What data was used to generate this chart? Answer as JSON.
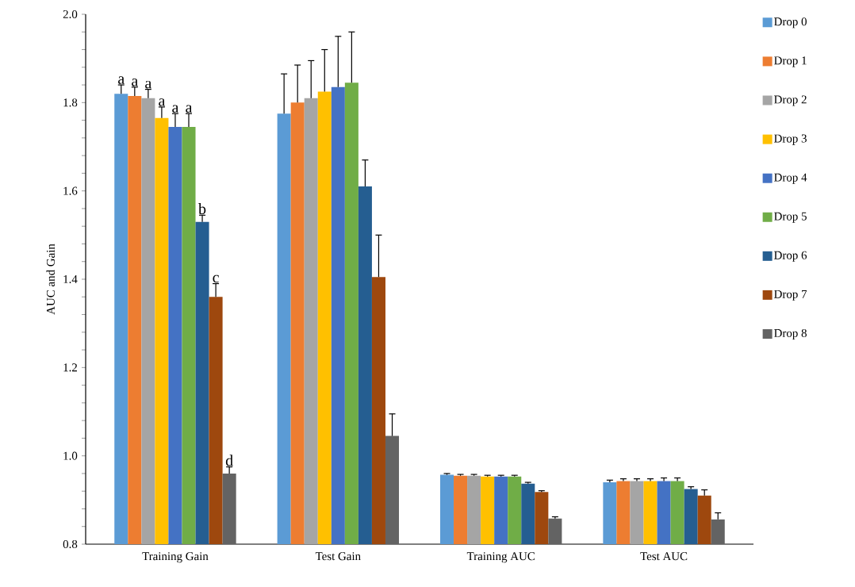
{
  "chart_data": {
    "type": "bar",
    "ylabel": "AUC and Gain",
    "categories": [
      "Training Gain",
      "Test Gain",
      "Training AUC",
      "Test AUC"
    ],
    "series": [
      {
        "name": "Drop 0",
        "color": "#5b9bd5",
        "values": [
          1.82,
          1.775,
          0.957,
          0.94
        ],
        "errors": [
          0.02,
          0.09,
          0.003,
          0.005
        ],
        "value_labels": [
          "a",
          null,
          null,
          null
        ]
      },
      {
        "name": "Drop 1",
        "color": "#ed7d31",
        "values": [
          1.815,
          1.8,
          0.955,
          0.943
        ],
        "errors": [
          0.02,
          0.085,
          0.003,
          0.005
        ],
        "value_labels": [
          "a",
          null,
          null,
          null
        ]
      },
      {
        "name": "Drop 2",
        "color": "#a5a5a5",
        "values": [
          1.81,
          1.81,
          0.955,
          0.943
        ],
        "errors": [
          0.02,
          0.085,
          0.003,
          0.005
        ],
        "value_labels": [
          "a",
          null,
          null,
          null
        ]
      },
      {
        "name": "Drop 3",
        "color": "#ffc000",
        "values": [
          1.765,
          1.825,
          0.953,
          0.943
        ],
        "errors": [
          0.025,
          0.095,
          0.003,
          0.005
        ],
        "value_labels": [
          "a",
          null,
          null,
          null
        ]
      },
      {
        "name": "Drop 4",
        "color": "#4472c4",
        "values": [
          1.745,
          1.835,
          0.953,
          0.943
        ],
        "errors": [
          0.03,
          0.115,
          0.003,
          0.007
        ],
        "value_labels": [
          "a",
          null,
          null,
          null
        ]
      },
      {
        "name": "Drop 5",
        "color": "#70ad47",
        "values": [
          1.745,
          1.845,
          0.953,
          0.943
        ],
        "errors": [
          0.03,
          0.115,
          0.003,
          0.007
        ],
        "value_labels": [
          "a",
          null,
          null,
          null
        ]
      },
      {
        "name": "Drop 6",
        "color": "#255e91",
        "values": [
          1.53,
          1.61,
          0.937,
          0.925
        ],
        "errors": [
          0.015,
          0.06,
          0.003,
          0.005
        ],
        "value_labels": [
          "b",
          null,
          null,
          null
        ]
      },
      {
        "name": "Drop 7",
        "color": "#9e480e",
        "values": [
          1.36,
          1.405,
          0.918,
          0.91
        ],
        "errors": [
          0.03,
          0.095,
          0.003,
          0.013
        ],
        "value_labels": [
          "c",
          null,
          null,
          null
        ]
      },
      {
        "name": "Drop 8",
        "color": "#636363",
        "values": [
          0.96,
          1.045,
          0.858,
          0.856
        ],
        "errors": [
          0.015,
          0.05,
          0.004,
          0.015
        ],
        "value_labels": [
          "d",
          null,
          null,
          null
        ]
      }
    ],
    "ylim": [
      0.8,
      2.0
    ],
    "yticks": [
      {
        "value": 0.8,
        "label": "0.8"
      },
      {
        "value": 0.84,
        "label": null
      },
      {
        "value": 0.88,
        "label": null
      },
      {
        "value": 0.92,
        "label": null
      },
      {
        "value": 0.96,
        "label": null
      },
      {
        "value": 1.0,
        "label": "1.0"
      },
      {
        "value": 1.04,
        "label": null
      },
      {
        "value": 1.08,
        "label": null
      },
      {
        "value": 1.12,
        "label": null
      },
      {
        "value": 1.16,
        "label": null
      },
      {
        "value": 1.2,
        "label": "1.2"
      },
      {
        "value": 1.24,
        "label": null
      },
      {
        "value": 1.28,
        "label": null
      },
      {
        "value": 1.32,
        "label": null
      },
      {
        "value": 1.36,
        "label": null
      },
      {
        "value": 1.4,
        "label": "1.4"
      },
      {
        "value": 1.44,
        "label": null
      },
      {
        "value": 1.48,
        "label": null
      },
      {
        "value": 1.52,
        "label": null
      },
      {
        "value": 1.56,
        "label": null
      },
      {
        "value": 1.6,
        "label": "1.6"
      },
      {
        "value": 1.64,
        "label": null
      },
      {
        "value": 1.68,
        "label": null
      },
      {
        "value": 1.72,
        "label": null
      },
      {
        "value": 1.76,
        "label": null
      },
      {
        "value": 1.8,
        "label": "1.8"
      },
      {
        "value": 1.84,
        "label": null
      },
      {
        "value": 1.88,
        "label": null
      },
      {
        "value": 1.92,
        "label": null
      },
      {
        "value": 1.96,
        "label": null
      },
      {
        "value": 2.0,
        "label": "2.0"
      }
    ],
    "legend": "right",
    "grid": false
  }
}
